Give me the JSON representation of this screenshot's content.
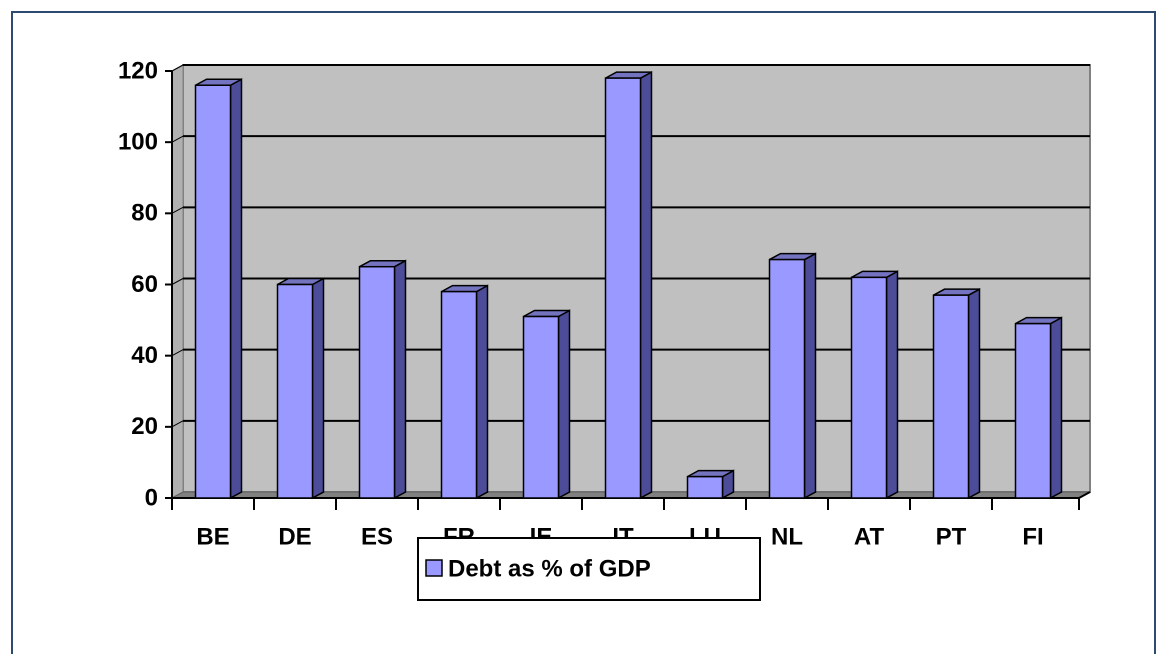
{
  "chart_data": {
    "type": "bar",
    "categories": [
      "BE",
      "DE",
      "ES",
      "FR",
      "IE",
      "IT",
      "LU",
      "NL",
      "AT",
      "PT",
      "FI"
    ],
    "series": [
      {
        "name": "Debt as % of GDP",
        "color": "#9999ff",
        "values": [
          116,
          60,
          65,
          58,
          51,
          118,
          6,
          67,
          62,
          57,
          49
        ]
      }
    ],
    "ylim": [
      0,
      120
    ],
    "yticks": [
      0,
      20,
      40,
      60,
      80,
      100,
      120
    ],
    "grid": true,
    "legend": "bottom"
  }
}
